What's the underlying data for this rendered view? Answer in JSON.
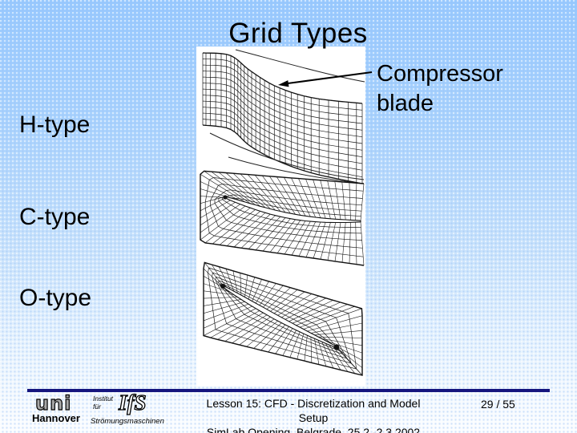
{
  "slide": {
    "title": "Grid Types",
    "labels": [
      {
        "label": "H-type"
      },
      {
        "label": "C-type"
      },
      {
        "label": "O-type"
      }
    ],
    "annotation": "Compressor blade",
    "figures": [
      {
        "name": "H-type structured grid around compressor blade"
      },
      {
        "name": "C-type structured grid around compressor blade"
      },
      {
        "name": "O-type structured grid around compressor blade"
      }
    ]
  },
  "footer": {
    "line1": "Lesson 15: CFD - Discretization and Model Setup",
    "line2": "SimLab Opening, Belgrade, 25.2.-2.3.2002",
    "page": "29 / 55"
  },
  "logo": {
    "uni": "uni",
    "city": "Hannover",
    "institute": [
      "Institut",
      "für",
      "Strömungsmaschinen"
    ],
    "ifs": "IfS"
  },
  "colors": {
    "background_top": "#99cbff",
    "background_bottom": "#fbfdff",
    "rule": "#15157e",
    "text": "#000000",
    "panel": "#ffffff"
  }
}
